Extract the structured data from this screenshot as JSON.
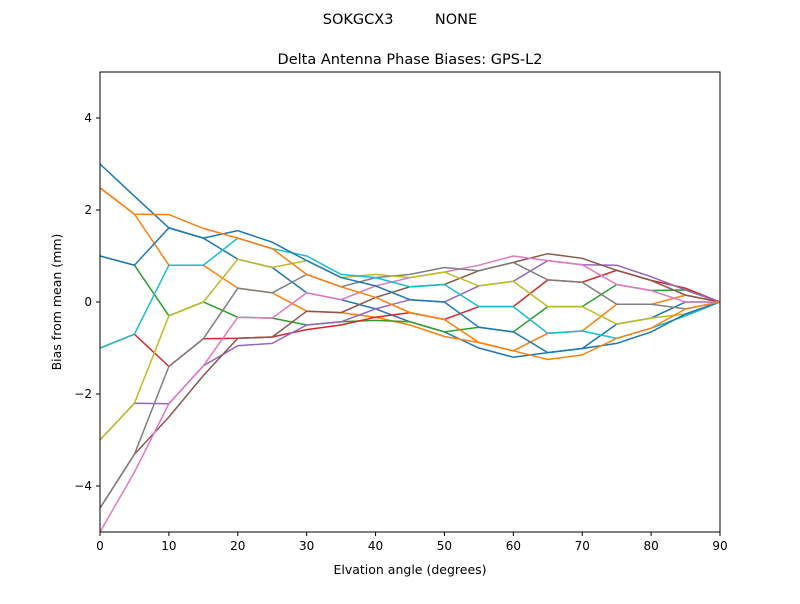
{
  "chart_data": {
    "type": "line",
    "suptitle": "SOKGCX3         NONE",
    "title": "Delta Antenna Phase Biases: GPS-L2",
    "xlabel": "Elvation angle (degrees)",
    "ylabel": "Bias from mean (mm)",
    "xlim": [
      0,
      90
    ],
    "ylim": [
      -5,
      5
    ],
    "xticks": [
      0,
      10,
      20,
      30,
      40,
      50,
      60,
      70,
      80,
      90
    ],
    "yticks": [
      -4,
      -2,
      0,
      2,
      4
    ],
    "grid": false,
    "colors": [
      "#1f77b4",
      "#ff7f0e",
      "#2ca02c",
      "#d62728",
      "#9467bd",
      "#8c564b",
      "#e377c2",
      "#7f7f7f",
      "#bcbd22",
      "#17becf"
    ],
    "x": [
      0,
      5,
      10,
      15,
      20,
      25,
      30,
      35,
      40,
      45,
      50,
      55,
      60,
      65,
      70,
      75,
      80,
      85,
      90
    ],
    "series": [
      {
        "values": [
          3,
          2.3,
          1.61,
          1.39,
          0.93,
          0.75,
          0.2,
          0.05,
          -0.15,
          -0.43,
          -0.65,
          -1.0,
          -1.2,
          -1.1,
          -1.01,
          -0.48,
          -0.35,
          0,
          0
        ]
      },
      {
        "values": [
          2.48,
          1.91,
          0.8,
          0.8,
          0.3,
          0.2,
          -0.2,
          -0.23,
          -0.33,
          -0.5,
          -0.75,
          -0.88,
          -1.06,
          -0.68,
          -0.63,
          -0.05,
          -0.05,
          0.15,
          0
        ]
      },
      {
        "values": [
          1,
          0.8,
          -0.3,
          0,
          -0.33,
          -0.35,
          -0.5,
          -0.43,
          -0.4,
          -0.43,
          -0.65,
          -0.55,
          -0.65,
          -0.1,
          -0.1,
          0.38,
          0.25,
          0.26,
          0
        ]
      },
      {
        "values": [
          -1,
          -0.7,
          -1.4,
          -0.8,
          -0.79,
          -0.76,
          -0.6,
          -0.5,
          -0.33,
          -0.23,
          -0.38,
          -0.1,
          -0.1,
          0.48,
          0.43,
          0.69,
          0.47,
          0.3,
          0
        ]
      },
      {
        "values": [
          -3,
          -2.2,
          -2.21,
          -1.39,
          -0.95,
          -0.9,
          -0.5,
          -0.43,
          -0.15,
          0.05,
          0,
          0.35,
          0.45,
          0.9,
          0.81,
          0.8,
          0.55,
          0.26,
          0
        ]
      },
      {
        "values": [
          -4.48,
          -3.31,
          -2.5,
          -1.6,
          -0.79,
          -0.76,
          -0.2,
          -0.23,
          0.1,
          0.33,
          0.38,
          0.68,
          0.86,
          1.05,
          0.95,
          0.69,
          0.47,
          0.15,
          0
        ]
      },
      {
        "values": [
          -5,
          -3.7,
          -2.21,
          -1.39,
          -0.33,
          -0.35,
          0.2,
          0.05,
          0.35,
          0.53,
          0.65,
          0.8,
          1.0,
          0.9,
          0.81,
          0.38,
          0.25,
          0,
          0
        ]
      },
      {
        "values": [
          -4.48,
          -3.31,
          -1.4,
          -0.8,
          0.3,
          0.2,
          0.6,
          0.33,
          0.53,
          0.6,
          0.75,
          0.68,
          0.86,
          0.48,
          0.43,
          -0.05,
          -0.05,
          -0.15,
          0
        ]
      },
      {
        "values": [
          -3,
          -2.2,
          -0.3,
          0,
          0.93,
          0.75,
          0.9,
          0.53,
          0.6,
          0.53,
          0.65,
          0.35,
          0.45,
          -0.1,
          -0.1,
          -0.48,
          -0.35,
          -0.26,
          0
        ]
      },
      {
        "values": [
          -1,
          -0.7,
          0.8,
          0.8,
          1.39,
          1.16,
          1.0,
          0.6,
          0.53,
          0.33,
          0.38,
          -0.1,
          -0.1,
          -0.68,
          -0.63,
          -0.79,
          -0.57,
          -0.3,
          0
        ]
      },
      {
        "values": [
          1,
          0.8,
          1.61,
          1.39,
          1.55,
          1.3,
          0.9,
          0.53,
          0.35,
          0.05,
          0,
          -0.55,
          -0.65,
          -1.1,
          -1.01,
          -0.9,
          -0.65,
          -0.26,
          0
        ]
      },
      {
        "values": [
          2.48,
          1.91,
          1.9,
          1.6,
          1.39,
          1.16,
          0.6,
          0.33,
          0.1,
          -0.23,
          -0.38,
          -0.88,
          -1.06,
          -1.25,
          -1.15,
          -0.79,
          -0.57,
          -0.15,
          0
        ]
      }
    ]
  }
}
